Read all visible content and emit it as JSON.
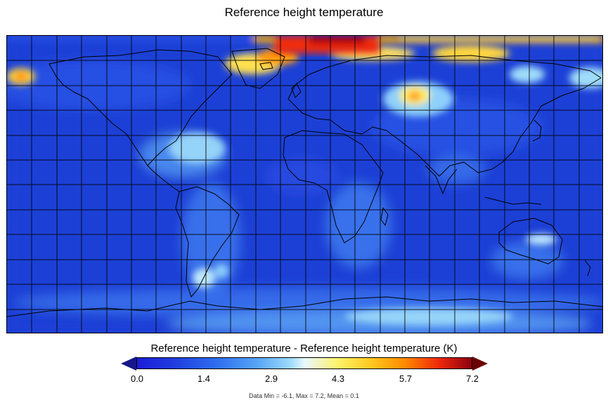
{
  "title": "Reference height temperature",
  "colorbar": {
    "title": "Reference height temperature - Reference height temperature (K)",
    "ticks": [
      "0.0",
      "1.4",
      "2.9",
      "4.3",
      "5.7",
      "7.2"
    ]
  },
  "stats": "Data Min = -6.1, Max = 7.2, Mean = 0.1",
  "colors": {
    "background_field": "#1f3fd6",
    "low": "#1c1cd8",
    "high": "#8e0010"
  }
}
